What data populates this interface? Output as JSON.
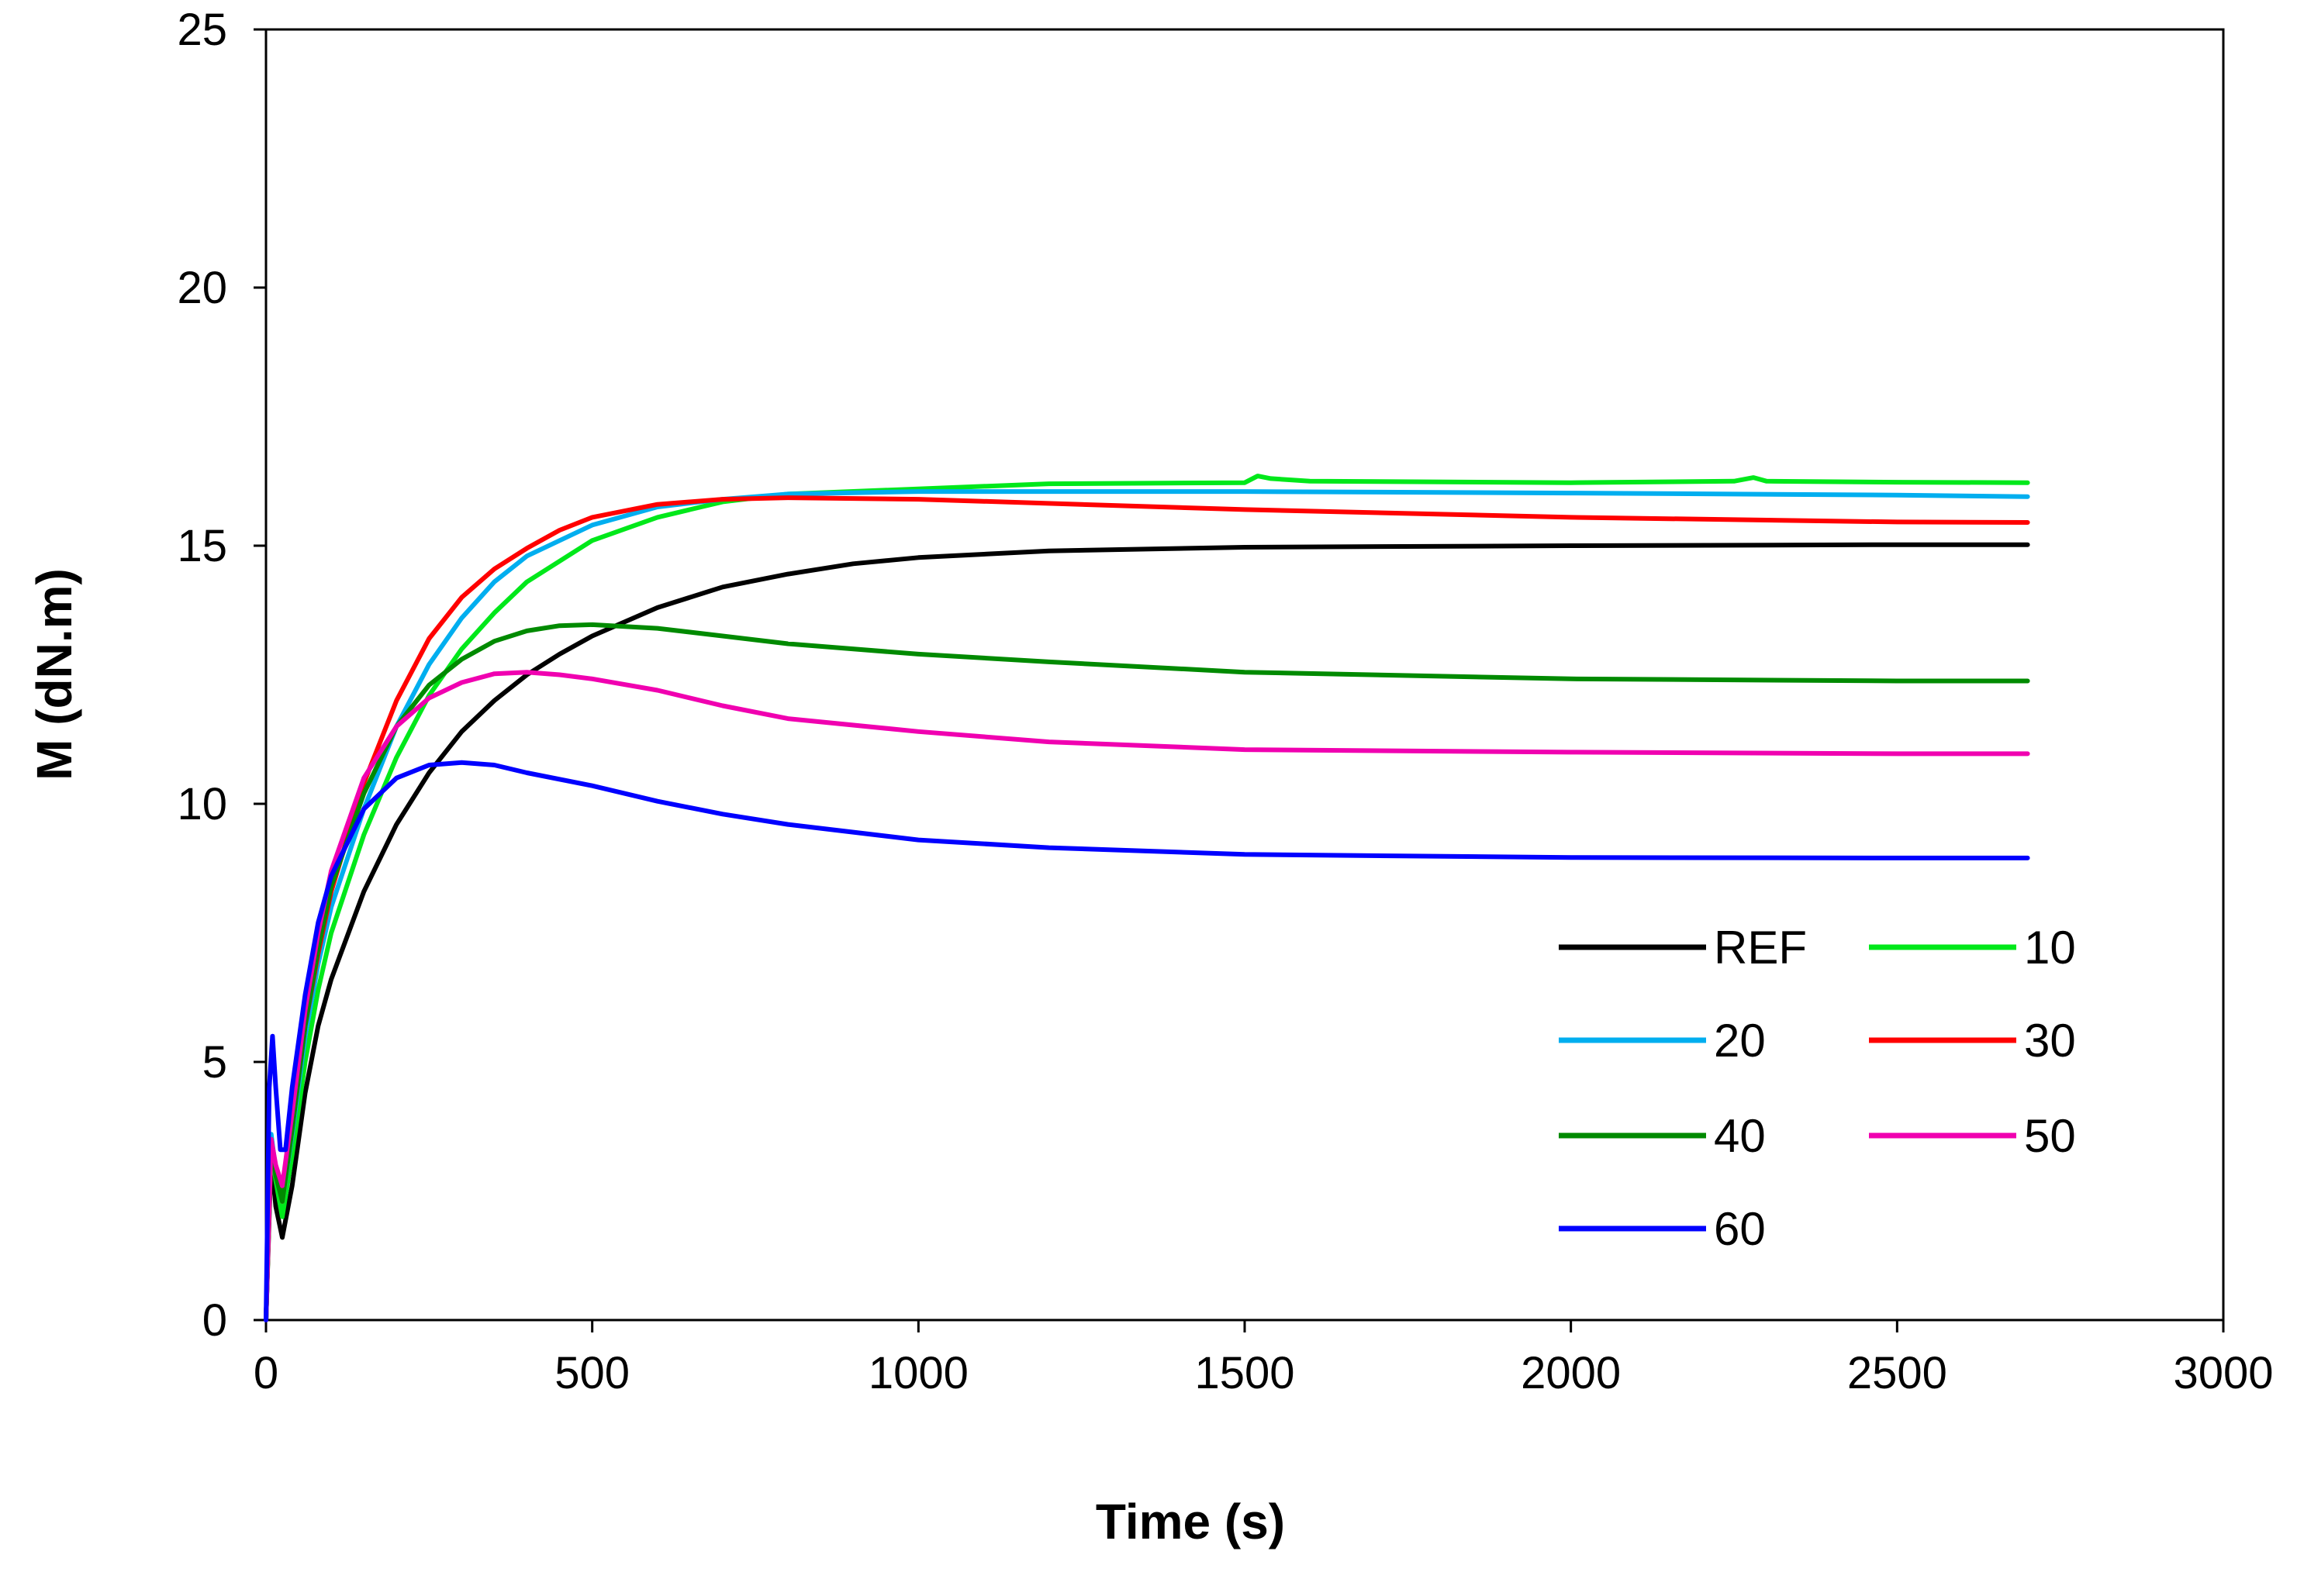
{
  "chart_data": {
    "type": "line",
    "title": "",
    "xlabel": "Time (s)",
    "ylabel": "M (dN.m)",
    "xlim": [
      0,
      3000
    ],
    "ylim": [
      0,
      25
    ],
    "xticks": [
      0,
      500,
      1000,
      1500,
      2000,
      2500,
      3000
    ],
    "yticks": [
      0,
      5,
      10,
      15,
      20,
      25
    ],
    "grid": false,
    "legend_position": "lower-right",
    "series": [
      {
        "name": "REF",
        "color": "#000000",
        "points": [
          [
            0,
            0
          ],
          [
            8,
            3.2
          ],
          [
            15,
            2.2
          ],
          [
            25,
            1.6
          ],
          [
            40,
            2.6
          ],
          [
            60,
            4.4
          ],
          [
            80,
            5.7
          ],
          [
            100,
            6.6
          ],
          [
            150,
            8.3
          ],
          [
            200,
            9.6
          ],
          [
            250,
            10.6
          ],
          [
            300,
            11.4
          ],
          [
            350,
            12.0
          ],
          [
            400,
            12.5
          ],
          [
            450,
            12.9
          ],
          [
            500,
            13.25
          ],
          [
            600,
            13.8
          ],
          [
            700,
            14.2
          ],
          [
            800,
            14.45
          ],
          [
            900,
            14.65
          ],
          [
            1000,
            14.77
          ],
          [
            1200,
            14.9
          ],
          [
            1500,
            14.97
          ],
          [
            2000,
            15.0
          ],
          [
            2500,
            15.02
          ],
          [
            2700,
            15.02
          ]
        ]
      },
      {
        "name": "10",
        "color": "#00e81a",
        "points": [
          [
            0,
            0
          ],
          [
            8,
            3.4
          ],
          [
            15,
            2.7
          ],
          [
            25,
            2.0
          ],
          [
            40,
            3.2
          ],
          [
            60,
            5.0
          ],
          [
            80,
            6.4
          ],
          [
            100,
            7.5
          ],
          [
            150,
            9.4
          ],
          [
            200,
            10.9
          ],
          [
            250,
            12.1
          ],
          [
            300,
            13.0
          ],
          [
            350,
            13.7
          ],
          [
            400,
            14.3
          ],
          [
            500,
            15.1
          ],
          [
            600,
            15.55
          ],
          [
            700,
            15.85
          ],
          [
            800,
            16.0
          ],
          [
            1000,
            16.1
          ],
          [
            1200,
            16.2
          ],
          [
            1500,
            16.22
          ],
          [
            1520,
            16.35
          ],
          [
            1540,
            16.3
          ],
          [
            1600,
            16.25
          ],
          [
            2000,
            16.22
          ],
          [
            2250,
            16.25
          ],
          [
            2280,
            16.32
          ],
          [
            2300,
            16.25
          ],
          [
            2500,
            16.23
          ],
          [
            2700,
            16.22
          ]
        ]
      },
      {
        "name": "20",
        "color": "#00aeef",
        "points": [
          [
            0,
            0
          ],
          [
            8,
            3.6
          ],
          [
            15,
            2.9
          ],
          [
            25,
            2.3
          ],
          [
            40,
            3.6
          ],
          [
            60,
            5.5
          ],
          [
            80,
            6.9
          ],
          [
            100,
            8.0
          ],
          [
            150,
            9.9
          ],
          [
            200,
            11.5
          ],
          [
            250,
            12.7
          ],
          [
            300,
            13.6
          ],
          [
            350,
            14.3
          ],
          [
            400,
            14.8
          ],
          [
            500,
            15.4
          ],
          [
            600,
            15.75
          ],
          [
            700,
            15.9
          ],
          [
            800,
            16.0
          ],
          [
            1000,
            16.05
          ],
          [
            1500,
            16.05
          ],
          [
            2000,
            16.02
          ],
          [
            2500,
            15.98
          ],
          [
            2700,
            15.95
          ]
        ]
      },
      {
        "name": "30",
        "color": "#ff0000",
        "points": [
          [
            0,
            0
          ],
          [
            8,
            3.5
          ],
          [
            15,
            2.9
          ],
          [
            25,
            2.3
          ],
          [
            40,
            3.7
          ],
          [
            60,
            5.7
          ],
          [
            80,
            7.1
          ],
          [
            100,
            8.3
          ],
          [
            150,
            10.4
          ],
          [
            200,
            12.0
          ],
          [
            250,
            13.2
          ],
          [
            300,
            14.0
          ],
          [
            350,
            14.55
          ],
          [
            400,
            14.95
          ],
          [
            450,
            15.3
          ],
          [
            500,
            15.55
          ],
          [
            600,
            15.8
          ],
          [
            700,
            15.9
          ],
          [
            800,
            15.93
          ],
          [
            1000,
            15.9
          ],
          [
            1500,
            15.7
          ],
          [
            2000,
            15.55
          ],
          [
            2500,
            15.46
          ],
          [
            2700,
            15.45
          ]
        ]
      },
      {
        "name": "40",
        "color": "#008a00",
        "points": [
          [
            0,
            0
          ],
          [
            8,
            3.5
          ],
          [
            15,
            2.8
          ],
          [
            25,
            2.3
          ],
          [
            40,
            3.7
          ],
          [
            60,
            5.7
          ],
          [
            80,
            7.2
          ],
          [
            100,
            8.4
          ],
          [
            150,
            10.2
          ],
          [
            200,
            11.5
          ],
          [
            250,
            12.3
          ],
          [
            300,
            12.8
          ],
          [
            350,
            13.15
          ],
          [
            400,
            13.35
          ],
          [
            450,
            13.45
          ],
          [
            500,
            13.47
          ],
          [
            600,
            13.4
          ],
          [
            700,
            13.25
          ],
          [
            800,
            13.1
          ],
          [
            1000,
            12.9
          ],
          [
            1200,
            12.75
          ],
          [
            1500,
            12.55
          ],
          [
            2000,
            12.42
          ],
          [
            2500,
            12.38
          ],
          [
            2700,
            12.38
          ]
        ]
      },
      {
        "name": "50",
        "color": "#f000b0",
        "points": [
          [
            0,
            0
          ],
          [
            8,
            3.5
          ],
          [
            15,
            3.0
          ],
          [
            25,
            2.6
          ],
          [
            40,
            4.0
          ],
          [
            60,
            6.0
          ],
          [
            80,
            7.5
          ],
          [
            100,
            8.7
          ],
          [
            150,
            10.5
          ],
          [
            200,
            11.5
          ],
          [
            250,
            12.05
          ],
          [
            300,
            12.35
          ],
          [
            350,
            12.52
          ],
          [
            400,
            12.55
          ],
          [
            450,
            12.5
          ],
          [
            500,
            12.42
          ],
          [
            600,
            12.2
          ],
          [
            700,
            11.9
          ],
          [
            800,
            11.65
          ],
          [
            1000,
            11.4
          ],
          [
            1200,
            11.2
          ],
          [
            1500,
            11.05
          ],
          [
            2000,
            11.0
          ],
          [
            2500,
            10.97
          ],
          [
            2700,
            10.97
          ]
        ]
      },
      {
        "name": "60",
        "color": "#0000ff",
        "points": [
          [
            0,
            0
          ],
          [
            5,
            4.5
          ],
          [
            10,
            5.5
          ],
          [
            15,
            4.5
          ],
          [
            22,
            3.3
          ],
          [
            30,
            3.3
          ],
          [
            40,
            4.5
          ],
          [
            60,
            6.3
          ],
          [
            80,
            7.7
          ],
          [
            100,
            8.6
          ],
          [
            150,
            9.9
          ],
          [
            200,
            10.5
          ],
          [
            250,
            10.75
          ],
          [
            300,
            10.8
          ],
          [
            350,
            10.75
          ],
          [
            400,
            10.6
          ],
          [
            500,
            10.35
          ],
          [
            600,
            10.05
          ],
          [
            700,
            9.8
          ],
          [
            800,
            9.6
          ],
          [
            1000,
            9.3
          ],
          [
            1200,
            9.15
          ],
          [
            1500,
            9.02
          ],
          [
            2000,
            8.96
          ],
          [
            2500,
            8.95
          ],
          [
            2700,
            8.95
          ]
        ]
      }
    ]
  }
}
